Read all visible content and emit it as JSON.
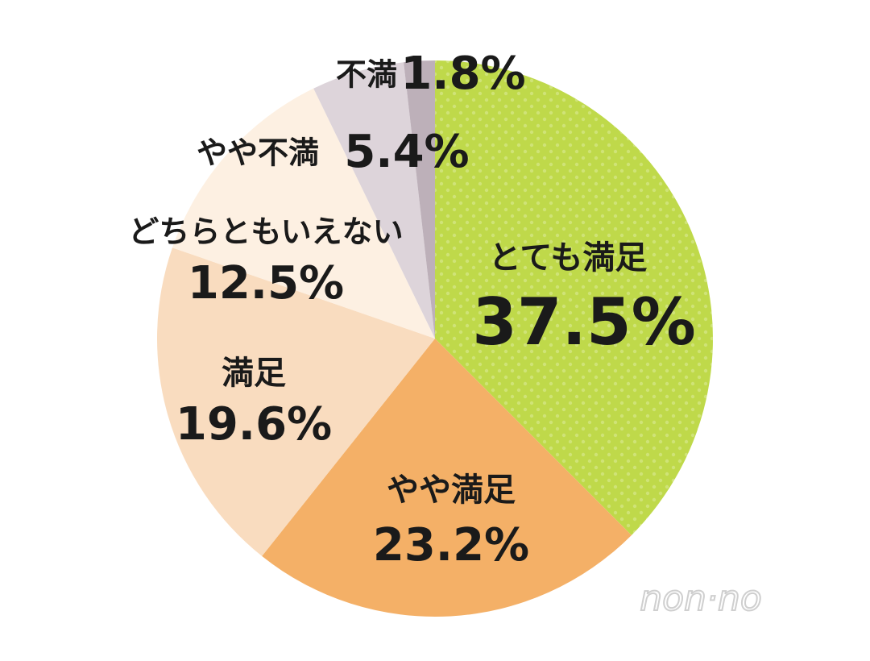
{
  "chart_data": {
    "type": "pie",
    "categories": [
      "とても満足",
      "やや満足",
      "満足",
      "どちらともいえない",
      "やや不満",
      "不満"
    ],
    "values": [
      37.5,
      23.2,
      19.6,
      12.5,
      5.4,
      1.8
    ],
    "value_labels": [
      "37.5%",
      "23.2%",
      "19.6%",
      "12.5%",
      "5.4%",
      "1.8%"
    ],
    "colors": [
      "#bfd94a",
      "#f4b067",
      "#f9dcbf",
      "#fdf0e2",
      "#ddd4da",
      "#bdb0b9"
    ],
    "watermark": "non·no"
  }
}
